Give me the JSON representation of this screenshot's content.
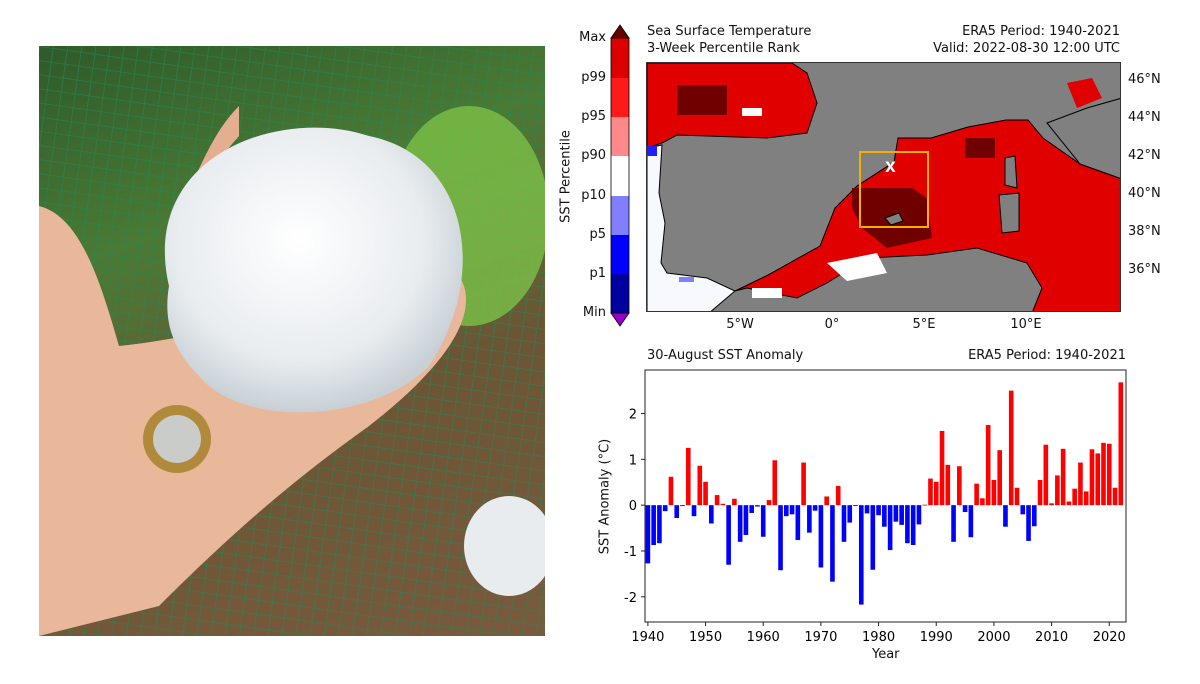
{
  "photo": {
    "subject": "hailstone-in-hand-with-coin"
  },
  "map": {
    "title_line1": "Sea Surface Temperature",
    "title_line2": "3-Week Percentile Rank",
    "period": "ERA5 Period: 1940-2021",
    "valid": "Valid: 2022-08-30 12:00 UTC",
    "marker": "X",
    "colorbar": {
      "label": "SST Percentile",
      "ticks": [
        "Max",
        "p99",
        "p95",
        "p90",
        "p10",
        "p5",
        "p1",
        "Min"
      ],
      "colors": [
        "#660000",
        "#dd0000",
        "#ff1a1a",
        "#ff8888",
        "#ffffff",
        "#8080ff",
        "#0000ff",
        "#0000a0",
        "#9900cc"
      ]
    },
    "lon_ticks": [
      "5°W",
      "0°",
      "5°E",
      "10°E"
    ],
    "lat_ticks": [
      "46°N",
      "44°N",
      "42°N",
      "40°N",
      "38°N",
      "36°N"
    ],
    "colors": {
      "land": "#808080",
      "box": "#f0b000"
    }
  },
  "chart_data": {
    "type": "bar",
    "title": "30-August SST Anomaly",
    "title_right": "ERA5 Period: 1940-2021",
    "xlabel": "Year",
    "ylabel": "SST Anomaly (°C)",
    "xlim": [
      1939.5,
      2022.9
    ],
    "ylim": [
      -2.55,
      2.95
    ],
    "xticks": [
      1940,
      1950,
      1960,
      1970,
      1980,
      1990,
      2000,
      2010,
      2020
    ],
    "yticks": [
      -2,
      -1,
      0,
      1,
      2
    ],
    "colors": {
      "positive": "#ff0000",
      "negative": "#0000ff"
    },
    "start_year": 1940,
    "values": [
      -1.27,
      -0.87,
      -0.83,
      -0.13,
      0.62,
      -0.28,
      -0.02,
      1.25,
      -0.24,
      0.86,
      0.51,
      -0.4,
      0.22,
      0.03,
      -1.3,
      0.14,
      -0.8,
      -0.65,
      -0.17,
      -0.03,
      -0.69,
      0.11,
      0.98,
      -1.42,
      -0.24,
      -0.2,
      -0.76,
      0.93,
      -0.6,
      -0.12,
      -1.36,
      0.19,
      -1.67,
      0.42,
      -0.8,
      -0.38,
      -0.02,
      -2.17,
      -0.18,
      -1.41,
      -0.22,
      -0.47,
      -0.98,
      -0.36,
      -0.43,
      -0.83,
      -0.87,
      -0.42,
      0.01,
      0.58,
      0.51,
      1.62,
      0.88,
      -0.8,
      0.85,
      -0.15,
      -0.7,
      0.47,
      0.15,
      1.75,
      0.55,
      1.2,
      -0.47,
      2.5,
      0.38,
      -0.2,
      -0.78,
      -0.46,
      0.55,
      1.32,
      0.04,
      0.65,
      1.23,
      0.08,
      0.36,
      0.93,
      0.3,
      1.22,
      1.13,
      1.36,
      1.34,
      0.38,
      2.68
    ]
  }
}
